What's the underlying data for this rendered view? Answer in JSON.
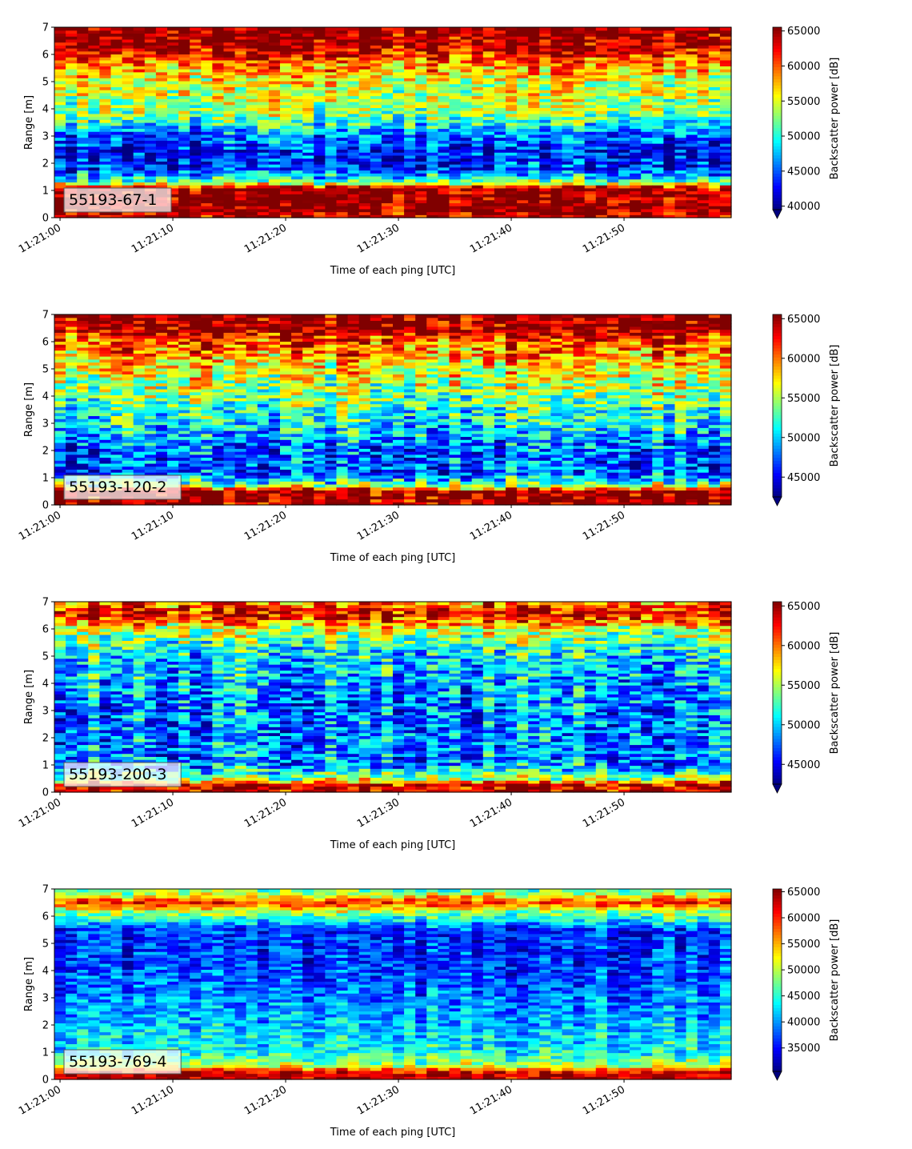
{
  "chart_data": [
    {
      "type": "heatmap",
      "panel_label": "55193-67-1",
      "xlabel": "Time of each ping [UTC]",
      "ylabel": "Range [m]",
      "x_ticks": [
        "11:21:00",
        "11:21:10",
        "11:21:20",
        "11:21:30",
        "11:21:40",
        "11:21:50"
      ],
      "y_ticks": [
        "0",
        "1",
        "2",
        "3",
        "4",
        "5",
        "6",
        "7"
      ],
      "xlim_seconds": [
        0,
        60
      ],
      "ylim": [
        0,
        7
      ],
      "colorbar_label": "Backscatter power [dB]",
      "colorbar_ticks": [
        "40000",
        "45000",
        "50000",
        "55000",
        "60000",
        "65000"
      ],
      "colorbar_range": [
        39500,
        65535
      ],
      "colormap": "jet",
      "profile": [
        {
          "range": 0.0,
          "value": 63000
        },
        {
          "range": 0.3,
          "value": 65535
        },
        {
          "range": 1.1,
          "value": 65000
        },
        {
          "range": 1.3,
          "value": 52000
        },
        {
          "range": 1.8,
          "value": 44000
        },
        {
          "range": 2.5,
          "value": 43000
        },
        {
          "range": 3.2,
          "value": 47000
        },
        {
          "range": 3.8,
          "value": 53000
        },
        {
          "range": 5.0,
          "value": 55000
        },
        {
          "range": 5.8,
          "value": 60000
        },
        {
          "range": 6.3,
          "value": 64000
        },
        {
          "range": 7.0,
          "value": 65535
        }
      ]
    },
    {
      "type": "heatmap",
      "panel_label": "55193-120-2",
      "xlabel": "Time of each ping [UTC]",
      "ylabel": "Range [m]",
      "x_ticks": [
        "11:21:00",
        "11:21:10",
        "11:21:20",
        "11:21:30",
        "11:21:40",
        "11:21:50"
      ],
      "y_ticks": [
        "0",
        "1",
        "2",
        "3",
        "4",
        "5",
        "6",
        "7"
      ],
      "xlim_seconds": [
        0,
        60
      ],
      "ylim": [
        0,
        7
      ],
      "colorbar_label": "Backscatter power [dB]",
      "colorbar_ticks": [
        "45000",
        "50000",
        "55000",
        "60000",
        "65000"
      ],
      "colorbar_range": [
        42500,
        65535
      ],
      "colormap": "jet",
      "profile": [
        {
          "range": 0.0,
          "value": 65000
        },
        {
          "range": 0.5,
          "value": 65535
        },
        {
          "range": 0.7,
          "value": 55000
        },
        {
          "range": 1.2,
          "value": 47000
        },
        {
          "range": 2.0,
          "value": 47500
        },
        {
          "range": 3.0,
          "value": 51000
        },
        {
          "range": 4.0,
          "value": 54000
        },
        {
          "range": 5.0,
          "value": 57000
        },
        {
          "range": 6.0,
          "value": 61000
        },
        {
          "range": 6.5,
          "value": 65000
        },
        {
          "range": 7.0,
          "value": 65535
        }
      ]
    },
    {
      "type": "heatmap",
      "panel_label": "55193-200-3",
      "xlabel": "Time of each ping [UTC]",
      "ylabel": "Range [m]",
      "x_ticks": [
        "11:21:00",
        "11:21:10",
        "11:21:20",
        "11:21:30",
        "11:21:40",
        "11:21:50"
      ],
      "y_ticks": [
        "0",
        "1",
        "2",
        "3",
        "4",
        "5",
        "6",
        "7"
      ],
      "xlim_seconds": [
        0,
        60
      ],
      "ylim": [
        0,
        7
      ],
      "colorbar_label": "Backscatter power [dB]",
      "colorbar_ticks": [
        "45000",
        "50000",
        "55000",
        "60000",
        "65000"
      ],
      "colorbar_range": [
        42500,
        65535
      ],
      "colormap": "jet",
      "profile": [
        {
          "range": 0.0,
          "value": 65000
        },
        {
          "range": 0.3,
          "value": 64000
        },
        {
          "range": 0.5,
          "value": 55000
        },
        {
          "range": 1.0,
          "value": 49000
        },
        {
          "range": 3.0,
          "value": 48500
        },
        {
          "range": 5.0,
          "value": 51000
        },
        {
          "range": 6.0,
          "value": 56000
        },
        {
          "range": 6.5,
          "value": 64000
        },
        {
          "range": 7.0,
          "value": 60000
        }
      ]
    },
    {
      "type": "heatmap",
      "panel_label": "55193-769-4",
      "xlabel": "Time of each ping [UTC]",
      "ylabel": "Range [m]",
      "x_ticks": [
        "11:21:00",
        "11:21:10",
        "11:21:20",
        "11:21:30",
        "11:21:40",
        "11:21:50"
      ],
      "y_ticks": [
        "0",
        "1",
        "2",
        "3",
        "4",
        "5",
        "6",
        "7"
      ],
      "xlim_seconds": [
        0,
        60
      ],
      "ylim": [
        0,
        7
      ],
      "colorbar_label": "Backscatter power [dB]",
      "colorbar_ticks": [
        "35000",
        "40000",
        "45000",
        "50000",
        "55000",
        "60000",
        "65000"
      ],
      "colorbar_range": [
        30500,
        65535
      ],
      "colormap": "jet",
      "profile": [
        {
          "range": 0.0,
          "value": 64000
        },
        {
          "range": 0.3,
          "value": 62000
        },
        {
          "range": 0.5,
          "value": 50000
        },
        {
          "range": 1.0,
          "value": 44000
        },
        {
          "range": 2.5,
          "value": 40000
        },
        {
          "range": 4.0,
          "value": 37000
        },
        {
          "range": 5.5,
          "value": 36000
        },
        {
          "range": 6.2,
          "value": 50000
        },
        {
          "range": 6.5,
          "value": 60000
        },
        {
          "range": 7.0,
          "value": 45000
        }
      ]
    }
  ]
}
